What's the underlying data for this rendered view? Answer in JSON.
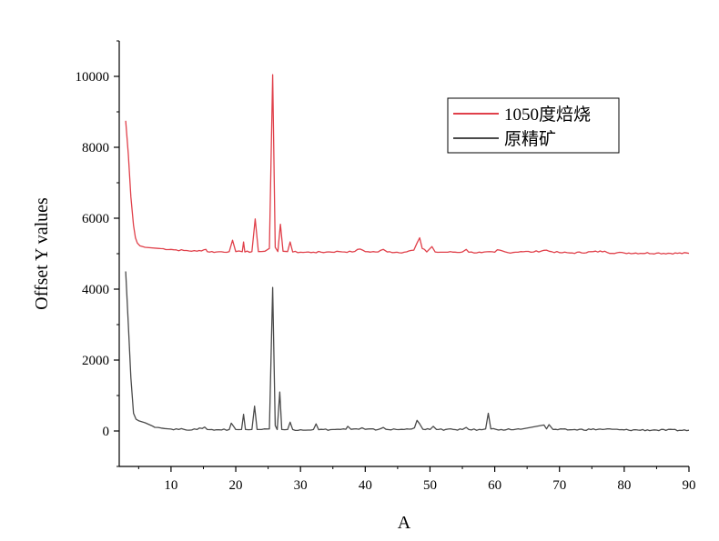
{
  "chart_data": {
    "type": "line",
    "title": "",
    "xlabel": "A",
    "ylabel": "Offset Y values",
    "xlim": [
      2,
      90
    ],
    "ylim": [
      -1000,
      11000
    ],
    "xticks": [
      10,
      20,
      30,
      40,
      50,
      60,
      70,
      80,
      90
    ],
    "yticks": [
      0,
      2000,
      4000,
      6000,
      8000,
      10000
    ],
    "grid": false,
    "legend_position": "top-right",
    "series": [
      {
        "name": "1050度焙烧",
        "color": "#e0404a",
        "baseline": 5000,
        "x": [
          3,
          3.4,
          3.8,
          4.2,
          4.5,
          4.8,
          5.2,
          6,
          8,
          10,
          12,
          14,
          15.4,
          15.6,
          17,
          19,
          19.5,
          20,
          21,
          21.2,
          21.4,
          22.5,
          23,
          23.5,
          24.5,
          25.2,
          25.7,
          26.1,
          26.5,
          26.9,
          27.3,
          28,
          28.4,
          28.8,
          30,
          32,
          34,
          36,
          38,
          39.2,
          39.6,
          40,
          42,
          42.8,
          43.4,
          46,
          47.5,
          48,
          48.4,
          48.8,
          49.5,
          50.3,
          50.8,
          52,
          55,
          55.6,
          56,
          58,
          60,
          60.4,
          62,
          64,
          66,
          68,
          68.4,
          70,
          72,
          77,
          77.4,
          80,
          85,
          90
        ],
        "y": [
          8750,
          7800,
          6600,
          5800,
          5450,
          5300,
          5220,
          5180,
          5150,
          5120,
          5090,
          5070,
          5120,
          5060,
          5050,
          5060,
          5380,
          5060,
          5055,
          5330,
          5050,
          5060,
          5980,
          5060,
          5070,
          5150,
          10050,
          5180,
          5060,
          5830,
          5070,
          5060,
          5330,
          5050,
          5040,
          5040,
          5045,
          5060,
          5050,
          5130,
          5100,
          5060,
          5050,
          5120,
          5050,
          5040,
          5100,
          5300,
          5450,
          5150,
          5050,
          5200,
          5050,
          5040,
          5050,
          5120,
          5040,
          5030,
          5040,
          5110,
          5030,
          5060,
          5050,
          5100,
          5070,
          5030,
          5020,
          5070,
          5030,
          5020,
          5015,
          5010
        ]
      },
      {
        "name": "原精矿",
        "color": "#4a4a4a",
        "baseline": 0,
        "x": [
          3,
          3.4,
          3.8,
          4.2,
          4.6,
          5,
          6,
          7,
          8,
          9,
          10,
          12,
          14,
          15.2,
          15.6,
          17,
          19,
          19.3,
          19.7,
          20,
          20.9,
          21.2,
          21.5,
          22.5,
          22.9,
          23.3,
          24,
          25.2,
          25.7,
          26.1,
          26.4,
          26.8,
          27.1,
          28,
          28.4,
          28.8,
          30,
          32,
          32.4,
          32.8,
          35,
          37,
          37.3,
          37.8,
          39,
          39.5,
          40,
          42,
          42.8,
          43.2,
          46,
          47.6,
          48,
          48.4,
          48.9,
          50,
          50.5,
          51,
          55,
          55.6,
          56,
          58,
          58.6,
          59,
          59.4,
          61,
          64,
          67.6,
          68,
          68.4,
          69,
          72,
          77,
          80,
          85,
          90
        ],
        "y": [
          4500,
          3000,
          1500,
          500,
          330,
          290,
          230,
          150,
          100,
          70,
          55,
          45,
          40,
          110,
          40,
          35,
          40,
          220,
          120,
          40,
          40,
          470,
          40,
          40,
          700,
          40,
          40,
          60,
          4050,
          150,
          40,
          1100,
          40,
          40,
          250,
          40,
          35,
          40,
          200,
          35,
          40,
          50,
          130,
          45,
          50,
          90,
          45,
          40,
          100,
          45,
          40,
          90,
          300,
          200,
          50,
          40,
          130,
          40,
          40,
          100,
          40,
          35,
          60,
          500,
          60,
          40,
          50,
          170,
          60,
          180,
          40,
          35,
          50,
          30,
          25,
          20
        ]
      }
    ]
  }
}
